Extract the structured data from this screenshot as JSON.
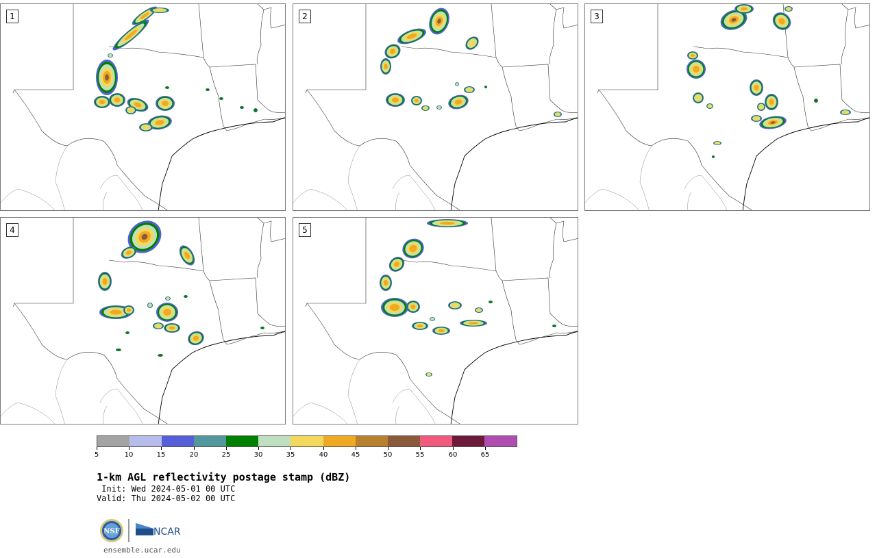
{
  "panels": [
    {
      "label": "1",
      "storms": [
        [
          190,
          50,
          34,
          7,
          -40,
          0.9
        ],
        [
          210,
          22,
          22,
          6,
          -35,
          0.8
        ],
        [
          232,
          14,
          14,
          4,
          0,
          0.7
        ],
        [
          155,
          112,
          16,
          26,
          0,
          0.95
        ],
        [
          148,
          148,
          12,
          9,
          0,
          0.8
        ],
        [
          170,
          145,
          12,
          10,
          0,
          0.8
        ],
        [
          200,
          152,
          16,
          9,
          20,
          0.8
        ],
        [
          240,
          150,
          14,
          11,
          0,
          0.85
        ],
        [
          232,
          178,
          18,
          10,
          -10,
          0.9
        ],
        [
          212,
          185,
          10,
          6,
          0,
          0.7
        ],
        [
          190,
          160,
          8,
          6,
          0,
          0.6
        ],
        [
          243,
          127,
          3,
          2,
          0,
          0.4
        ],
        [
          302,
          130,
          3,
          2,
          0,
          0.4
        ],
        [
          322,
          143,
          3,
          2,
          0,
          0.4
        ],
        [
          352,
          156,
          3,
          2,
          0,
          0.4
        ],
        [
          372,
          160,
          3,
          3,
          0,
          0.4
        ],
        [
          160,
          80,
          4,
          3,
          0,
          0.5
        ]
      ]
    },
    {
      "label": "2",
      "storms": [
        [
          640,
          30,
          14,
          20,
          20,
          0.95
        ],
        [
          600,
          52,
          22,
          9,
          -20,
          0.85
        ],
        [
          572,
          74,
          12,
          10,
          -30,
          0.8
        ],
        [
          562,
          96,
          8,
          12,
          0,
          0.8
        ],
        [
          688,
          62,
          11,
          8,
          -45,
          0.7
        ],
        [
          576,
          145,
          14,
          10,
          0,
          0.85
        ],
        [
          607,
          146,
          8,
          7,
          0,
          0.8
        ],
        [
          668,
          148,
          15,
          10,
          -15,
          0.85
        ],
        [
          684,
          130,
          8,
          5,
          0,
          0.7
        ],
        [
          620,
          157,
          6,
          4,
          0,
          0.6
        ],
        [
          640,
          156,
          4,
          3,
          0,
          0.5
        ],
        [
          666,
          122,
          3,
          3,
          0,
          0.5
        ],
        [
          813,
          166,
          6,
          4,
          0,
          0.7
        ],
        [
          708,
          126,
          2,
          2,
          0,
          0.4
        ]
      ]
    },
    {
      "label": "3",
      "storms": [
        [
          1070,
          28,
          20,
          14,
          -20,
          0.95
        ],
        [
          1085,
          12,
          14,
          7,
          0,
          0.8
        ],
        [
          1140,
          30,
          12,
          14,
          -50,
          0.85
        ],
        [
          1150,
          12,
          6,
          4,
          0,
          0.6
        ],
        [
          1015,
          100,
          14,
          14,
          0,
          0.9
        ],
        [
          1010,
          80,
          8,
          6,
          0,
          0.75
        ],
        [
          1018,
          142,
          8,
          8,
          0,
          0.7
        ],
        [
          1035,
          154,
          5,
          4,
          0,
          0.6
        ],
        [
          1103,
          127,
          10,
          12,
          0,
          0.8
        ],
        [
          1125,
          148,
          10,
          12,
          0,
          0.9
        ],
        [
          1110,
          155,
          6,
          6,
          0,
          0.7
        ],
        [
          1127,
          178,
          20,
          9,
          -10,
          0.95
        ],
        [
          1103,
          172,
          8,
          5,
          0,
          0.7
        ],
        [
          1046,
          208,
          6,
          3,
          0,
          0.6
        ],
        [
          1233,
          163,
          8,
          4,
          0,
          0.6
        ],
        [
          1190,
          146,
          3,
          3,
          0,
          0.4
        ],
        [
          1040,
          228,
          2,
          2,
          0,
          0.4
        ]
      ]
    },
    {
      "label": "4",
      "storms": [
        [
          210,
          345,
          26,
          22,
          -40,
          0.95
        ],
        [
          187,
          368,
          12,
          8,
          -25,
          0.8
        ],
        [
          272,
          372,
          9,
          16,
          -30,
          0.8
        ],
        [
          152,
          410,
          10,
          14,
          0,
          0.85
        ],
        [
          168,
          455,
          24,
          10,
          0,
          0.85
        ],
        [
          187,
          452,
          8,
          7,
          0,
          0.75
        ],
        [
          243,
          455,
          16,
          14,
          0,
          0.8
        ],
        [
          250,
          478,
          12,
          7,
          0,
          0.8
        ],
        [
          285,
          493,
          12,
          10,
          -20,
          0.9
        ],
        [
          230,
          475,
          8,
          5,
          0,
          0.6
        ],
        [
          218,
          445,
          4,
          4,
          0,
          0.5
        ],
        [
          244,
          435,
          4,
          3,
          0,
          0.5
        ],
        [
          270,
          432,
          3,
          2,
          0,
          0.4
        ],
        [
          233,
          518,
          4,
          2,
          0,
          0.4
        ],
        [
          172,
          510,
          4,
          2,
          0,
          0.4
        ],
        [
          382,
          478,
          3,
          2,
          0,
          0.4
        ],
        [
          185,
          485,
          3,
          2,
          0,
          0.4
        ]
      ]
    },
    {
      "label": "5",
      "storms": [
        [
          652,
          325,
          30,
          6,
          0,
          0.85
        ],
        [
          602,
          362,
          16,
          14,
          -25,
          0.9
        ],
        [
          578,
          385,
          12,
          10,
          -40,
          0.85
        ],
        [
          562,
          412,
          9,
          12,
          0,
          0.8
        ],
        [
          575,
          448,
          20,
          14,
          0,
          0.9
        ],
        [
          602,
          447,
          10,
          9,
          0,
          0.85
        ],
        [
          612,
          475,
          12,
          6,
          0,
          0.8
        ],
        [
          643,
          482,
          13,
          6,
          0,
          0.85
        ],
        [
          690,
          471,
          20,
          5,
          0,
          0.75
        ],
        [
          663,
          445,
          10,
          6,
          0,
          0.7
        ],
        [
          698,
          452,
          6,
          4,
          0,
          0.6
        ],
        [
          625,
          546,
          5,
          3,
          0,
          0.6
        ],
        [
          808,
          475,
          3,
          2,
          0,
          0.4
        ],
        [
          715,
          440,
          3,
          2,
          0,
          0.4
        ],
        [
          630,
          465,
          4,
          3,
          0,
          0.5
        ]
      ]
    }
  ],
  "colorbar": {
    "colors": [
      "#a3a3a3",
      "#b7bdeb",
      "#5560d8",
      "#52979b",
      "#008000",
      "#bfe0bf",
      "#f2d95d",
      "#f0a922",
      "#b8812f",
      "#8b5a3c",
      "#f05a7d",
      "#6b1a3a",
      "#b04db0"
    ],
    "tick_labels": [
      "5",
      "10",
      "15",
      "20",
      "25",
      "30",
      "35",
      "40",
      "45",
      "50",
      "55",
      "60",
      "65"
    ]
  },
  "title": "1-km AGL reflectivity postage stamp (dBZ)",
  "init": " Init: Wed 2024-05-01 00 UTC",
  "valid": "Valid: Thu 2024-05-02 00 UTC",
  "logo": {
    "nsf_text": "NSF",
    "ncar_text": "NCAR"
  },
  "site": "ensemble.ucar.edu"
}
